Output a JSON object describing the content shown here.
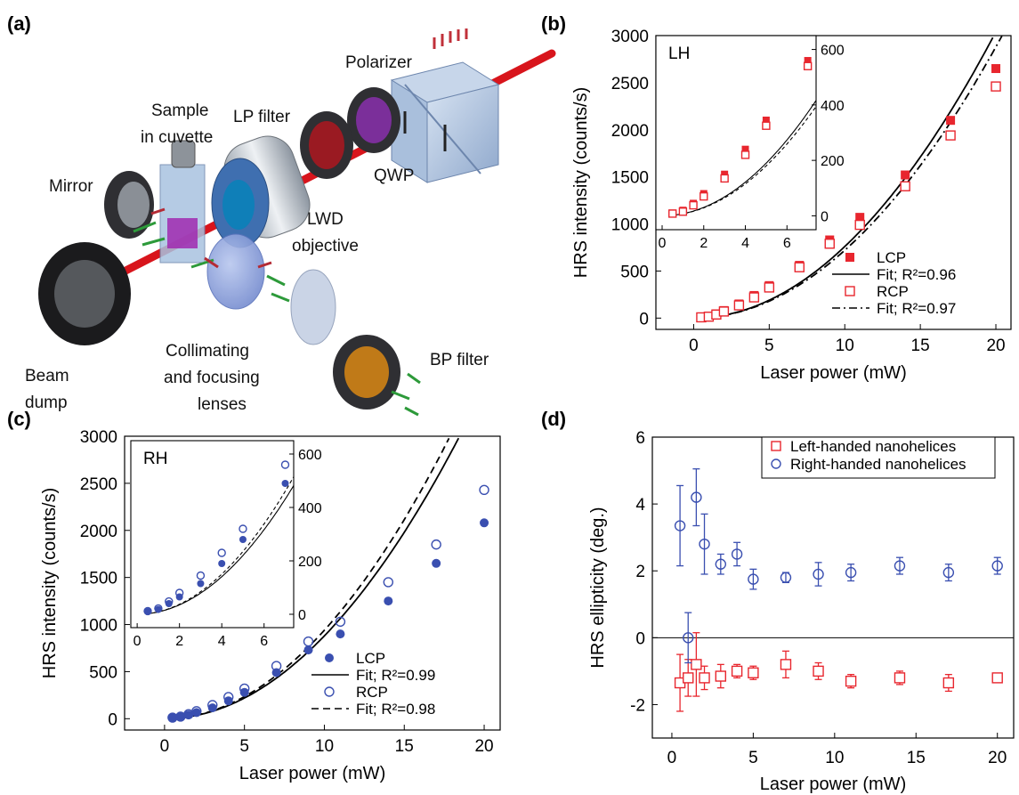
{
  "panels": {
    "a": {
      "letter": "(a)",
      "labels": {
        "polarizer": "Polarizer",
        "sample_1": "Sample",
        "sample_2": "in cuvette",
        "lp_filter": "LP filter",
        "mirror": "Mirror",
        "qwp": "QWP",
        "lwd_1": "LWD",
        "lwd_2": "objective",
        "bp_filter": "BP filter",
        "collimating_1": "Collimating",
        "collimating_2": "and focusing",
        "collimating_3": "lenses",
        "beam_dump_1": "Beam",
        "beam_dump_2": "dump"
      }
    },
    "b": {
      "letter": "(b)"
    },
    "c": {
      "letter": "(c)"
    },
    "d": {
      "letter": "(d)"
    }
  },
  "colors": {
    "red": "#e8262e",
    "blue": "#3a4fb0",
    "laser": "#d8151c",
    "green": "#2d9a3a",
    "axis": "#000000"
  },
  "chart_data": [
    {
      "panel": "b",
      "type": "scatter",
      "xlabel": "Laser power (mW)",
      "ylabel": "HRS intensity (counts/s)",
      "xlim": [
        -2.5,
        21
      ],
      "ylim": [
        -120,
        3000
      ],
      "xticks": [
        0,
        5,
        10,
        15,
        20
      ],
      "yticks": [
        0,
        500,
        1000,
        1500,
        2000,
        2500,
        3000
      ],
      "x": [
        0.5,
        1,
        1.5,
        2,
        3,
        4,
        5,
        7,
        9,
        11,
        14,
        17,
        20
      ],
      "series": [
        {
          "name": "LCP",
          "marker": "filled-square",
          "color": "#e8262e",
          "values": [
            10,
            20,
            45,
            80,
            150,
            240,
            345,
            560,
            830,
            1070,
            1520,
            2100,
            2650
          ]
        },
        {
          "name": "RCP",
          "marker": "open-square",
          "color": "#e8262e",
          "values": [
            8,
            15,
            38,
            70,
            135,
            220,
            325,
            540,
            790,
            990,
            1400,
            1940,
            2460
          ]
        }
      ],
      "fits": [
        {
          "name": "Fit; R²=0.96",
          "style": "solid",
          "color": "#000000",
          "coef": 7.6
        },
        {
          "name": "Fit; R²=0.97",
          "style": "dash-dot",
          "color": "#000000",
          "coef": 7.2
        }
      ],
      "legend_placement": "bottom-right",
      "inset": {
        "label": "LH",
        "xlim": [
          -0.3,
          7.4
        ],
        "ylim": [
          -50,
          650
        ],
        "xticks": [
          0,
          2,
          4,
          6
        ],
        "yticks": [
          0,
          200,
          400,
          600
        ],
        "x": [
          0.5,
          1,
          1.5,
          2,
          3,
          4,
          5,
          7
        ],
        "series_values": [
          [
            10,
            20,
            45,
            80,
            150,
            240,
            345,
            560
          ],
          [
            8,
            15,
            38,
            70,
            135,
            220,
            325,
            540
          ]
        ]
      }
    },
    {
      "panel": "c",
      "type": "scatter",
      "xlabel": "Laser power (mW)",
      "ylabel": "HRS intensity (counts/s)",
      "xlim": [
        -2.5,
        21
      ],
      "ylim": [
        -120,
        3000
      ],
      "xticks": [
        0,
        5,
        10,
        15,
        20
      ],
      "yticks": [
        0,
        500,
        1000,
        1500,
        2000,
        2500,
        3000
      ],
      "x": [
        0.5,
        1,
        1.5,
        2,
        3,
        4,
        5,
        7,
        9,
        11,
        14,
        17,
        20
      ],
      "series": [
        {
          "name": "LCP",
          "marker": "filled-circle",
          "color": "#3a4fb0",
          "values": [
            10,
            18,
            40,
            65,
            115,
            190,
            280,
            490,
            730,
            900,
            1250,
            1650,
            2080
          ]
        },
        {
          "name": "RCP",
          "marker": "open-circle",
          "color": "#3a4fb0",
          "values": [
            12,
            22,
            48,
            80,
            145,
            230,
            320,
            560,
            820,
            1030,
            1450,
            1850,
            2430
          ]
        }
      ],
      "fits": [
        {
          "name": "Fit; R²=0.99",
          "style": "solid",
          "color": "#000000",
          "coef": 8.8
        },
        {
          "name": "Fit; R²=0.98",
          "style": "dashed",
          "color": "#000000",
          "coef": 9.4
        }
      ],
      "legend_placement": "bottom-right",
      "inset": {
        "label": "RH",
        "xlim": [
          -0.3,
          7.4
        ],
        "ylim": [
          -50,
          650
        ],
        "xticks": [
          0,
          2,
          4,
          6
        ],
        "yticks": [
          0,
          200,
          400,
          600
        ],
        "x": [
          0.5,
          1,
          1.5,
          2,
          3,
          4,
          5,
          7
        ],
        "series_values": [
          [
            10,
            18,
            40,
            65,
            115,
            190,
            280,
            490
          ],
          [
            12,
            22,
            48,
            80,
            145,
            230,
            320,
            560
          ]
        ]
      }
    },
    {
      "panel": "d",
      "type": "scatter",
      "xlabel": "Laser power (mW)",
      "ylabel": "HRS ellipticity (deg.)",
      "xlim": [
        -1.2,
        21
      ],
      "ylim": [
        -3,
        6
      ],
      "xticks": [
        0,
        5,
        10,
        15,
        20
      ],
      "yticks": [
        -2,
        0,
        2,
        4,
        6
      ],
      "zero_line": true,
      "legend_placement": "top-right",
      "series": [
        {
          "name": "Left-handed nanohelices",
          "marker": "open-square",
          "color": "#e8262e",
          "x": [
            0.5,
            1,
            1.5,
            2,
            3,
            4,
            5,
            7,
            9,
            11,
            14,
            17,
            20
          ],
          "values": [
            -1.35,
            -1.2,
            -0.8,
            -1.2,
            -1.15,
            -1.0,
            -1.05,
            -0.8,
            -1.0,
            -1.3,
            -1.2,
            -1.35,
            -1.2
          ],
          "errors": [
            0.85,
            0.55,
            0.95,
            0.35,
            0.35,
            0.2,
            0.2,
            0.4,
            0.25,
            0.2,
            0.2,
            0.25,
            0.1
          ]
        },
        {
          "name": "Right-handed nanohelices",
          "marker": "open-circle",
          "color": "#3a4fb0",
          "x": [
            0.5,
            1,
            1.5,
            2,
            3,
            4,
            5,
            7,
            9,
            11,
            14,
            17,
            20
          ],
          "values": [
            3.35,
            0.0,
            4.2,
            2.8,
            2.2,
            2.5,
            1.75,
            1.8,
            1.9,
            1.95,
            2.15,
            1.95,
            2.15
          ],
          "errors": [
            1.2,
            0.75,
            0.85,
            0.9,
            0.3,
            0.35,
            0.3,
            0.15,
            0.35,
            0.25,
            0.25,
            0.25,
            0.25
          ]
        }
      ]
    }
  ]
}
